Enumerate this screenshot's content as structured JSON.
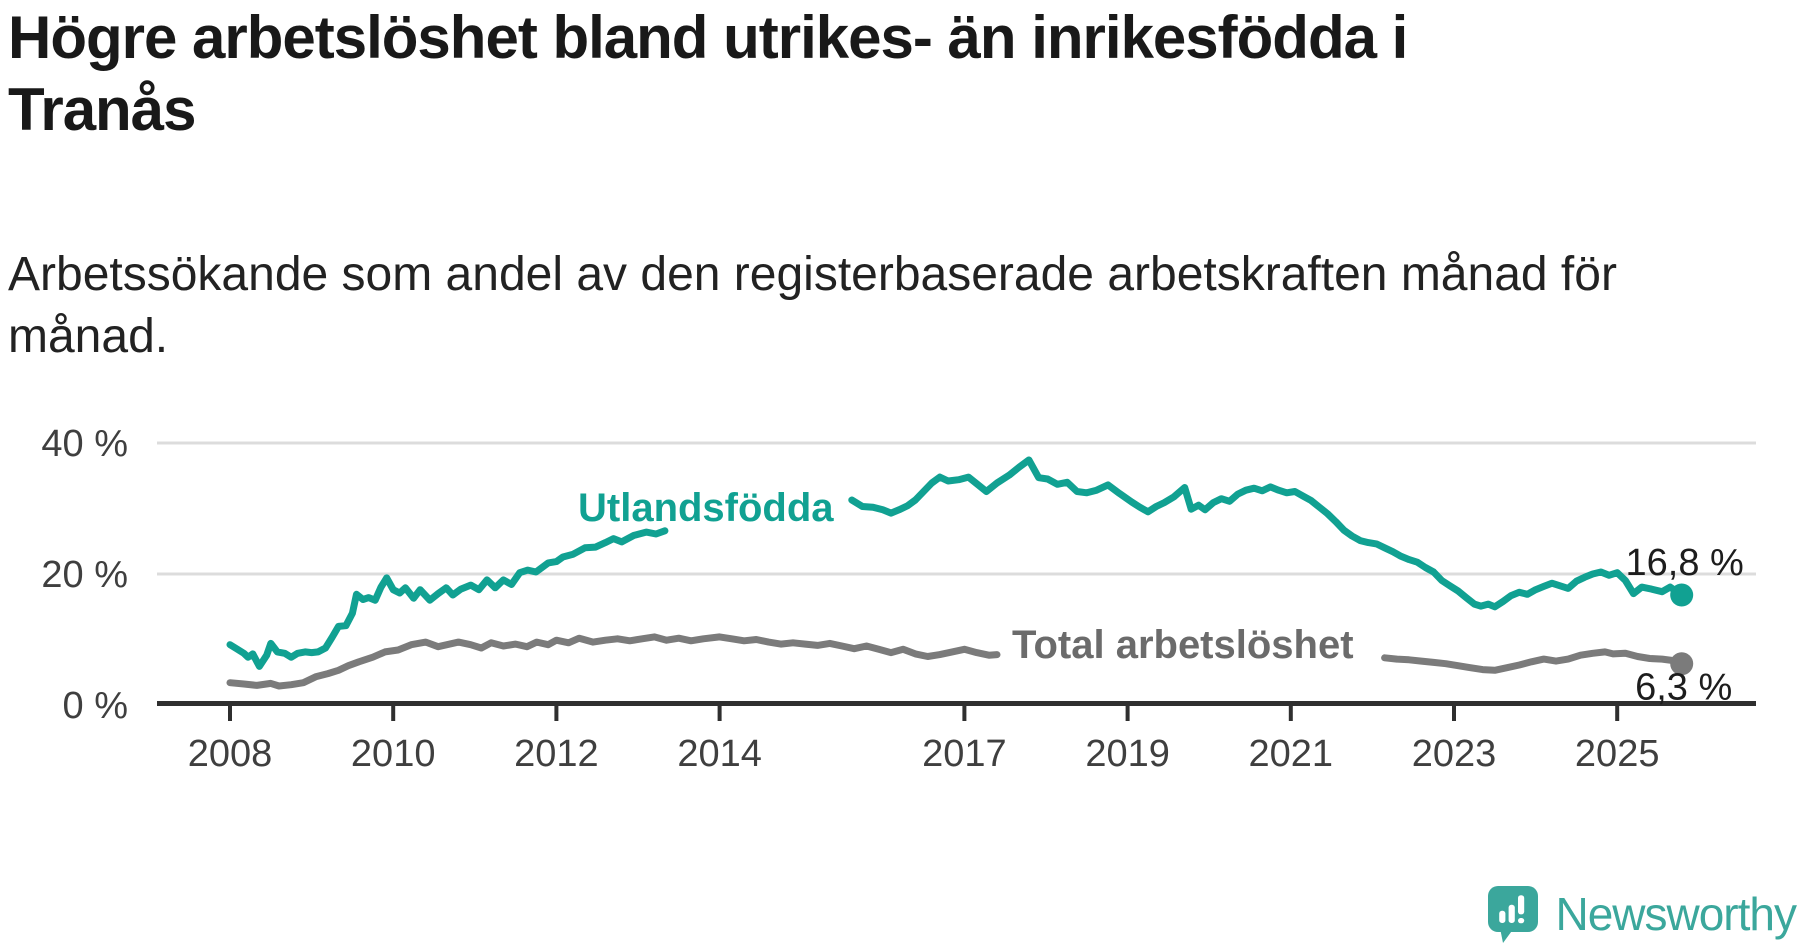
{
  "chart_data": {
    "type": "line",
    "title": "Högre arbetslöshet bland utrikes- än inrikesfödda i Tranås",
    "title_lines": [
      "Högre arbetslöshet bland utrikes- än inrikesfödda i",
      "Tranås"
    ],
    "subtitle": "Arbetssökande som andel av den registerbaserade arbetskraften månad för månad.",
    "subtitle_lines": [
      "Arbetssökande som andel av den registerbaserade arbetskraften månad för",
      "månad."
    ],
    "unit": "%",
    "grid": "horizontal-only",
    "legend": "inline-labels",
    "x_axis": {
      "ticks": [
        2008,
        2010,
        2012,
        2014,
        2017,
        2019,
        2021,
        2023,
        2025
      ],
      "tick_labels": [
        "2008",
        "2010",
        "2012",
        "2014",
        "2017",
        "2019",
        "2021",
        "2023",
        "2025"
      ],
      "range": [
        2007.1,
        2026.7
      ]
    },
    "y_axis": {
      "tick_values": [
        0,
        20,
        40
      ],
      "tick_labels": [
        "0 %",
        "20 %",
        "40 %"
      ],
      "gridline_values": [
        20,
        40
      ],
      "range": [
        0,
        42
      ]
    },
    "colors": {
      "gridline": "#DCDCDC",
      "axis": "#2F2F2F",
      "tick_label": "#3F3F3F",
      "annotation": "#1D1D1D"
    },
    "series": [
      {
        "name": "Utlandsfödda",
        "color": "#11A192",
        "label_color": "#11A192",
        "end_label": "16,8 %",
        "end_value": 16.8,
        "segments": [
          [
            [
              2008.0,
              9.2
            ],
            [
              2008.08,
              8.6
            ],
            [
              2008.17,
              7.9
            ],
            [
              2008.22,
              7.3
            ],
            [
              2008.28,
              7.8
            ],
            [
              2008.36,
              5.9
            ],
            [
              2008.45,
              7.6
            ],
            [
              2008.5,
              9.4
            ],
            [
              2008.58,
              8.1
            ],
            [
              2008.67,
              7.9
            ],
            [
              2008.75,
              7.3
            ],
            [
              2008.83,
              7.9
            ],
            [
              2008.92,
              8.1
            ],
            [
              2009.0,
              8.0
            ],
            [
              2009.08,
              8.1
            ],
            [
              2009.17,
              8.7
            ],
            [
              2009.25,
              10.3
            ],
            [
              2009.33,
              12.0
            ],
            [
              2009.42,
              12.1
            ],
            [
              2009.5,
              14.0
            ],
            [
              2009.55,
              16.9
            ],
            [
              2009.63,
              16.1
            ],
            [
              2009.7,
              16.4
            ],
            [
              2009.78,
              16.0
            ],
            [
              2009.85,
              18.0
            ],
            [
              2009.92,
              19.4
            ],
            [
              2010.0,
              17.6
            ],
            [
              2010.08,
              17.1
            ],
            [
              2010.15,
              17.9
            ],
            [
              2010.25,
              16.3
            ],
            [
              2010.33,
              17.6
            ],
            [
              2010.45,
              16.0
            ],
            [
              2010.55,
              17.0
            ],
            [
              2010.65,
              17.9
            ],
            [
              2010.73,
              16.8
            ],
            [
              2010.83,
              17.7
            ],
            [
              2010.95,
              18.3
            ],
            [
              2011.05,
              17.6
            ],
            [
              2011.15,
              19.1
            ],
            [
              2011.25,
              17.9
            ],
            [
              2011.35,
              19.1
            ],
            [
              2011.45,
              18.4
            ],
            [
              2011.55,
              20.2
            ],
            [
              2011.65,
              20.6
            ],
            [
              2011.75,
              20.3
            ],
            [
              2011.9,
              21.7
            ],
            [
              2012.0,
              21.9
            ],
            [
              2012.08,
              22.6
            ],
            [
              2012.2,
              23.0
            ],
            [
              2012.35,
              24.0
            ],
            [
              2012.48,
              24.1
            ],
            [
              2012.6,
              24.8
            ],
            [
              2012.7,
              25.4
            ],
            [
              2012.8,
              24.9
            ],
            [
              2012.95,
              25.9
            ],
            [
              2013.1,
              26.4
            ],
            [
              2013.22,
              26.1
            ],
            [
              2013.33,
              26.6
            ]
          ],
          [
            [
              2015.62,
              31.3
            ],
            [
              2015.75,
              30.3
            ],
            [
              2015.88,
              30.2
            ],
            [
              2016.0,
              29.8
            ],
            [
              2016.1,
              29.3
            ],
            [
              2016.2,
              29.8
            ],
            [
              2016.3,
              30.4
            ],
            [
              2016.4,
              31.3
            ],
            [
              2016.5,
              32.6
            ],
            [
              2016.6,
              33.9
            ],
            [
              2016.7,
              34.8
            ],
            [
              2016.8,
              34.2
            ],
            [
              2016.93,
              34.4
            ],
            [
              2017.05,
              34.8
            ],
            [
              2017.15,
              33.8
            ],
            [
              2017.27,
              32.6
            ],
            [
              2017.4,
              33.9
            ],
            [
              2017.55,
              35.1
            ],
            [
              2017.67,
              36.3
            ],
            [
              2017.79,
              37.4
            ],
            [
              2017.91,
              34.7
            ],
            [
              2018.02,
              34.5
            ],
            [
              2018.14,
              33.7
            ],
            [
              2018.26,
              34.0
            ],
            [
              2018.38,
              32.6
            ],
            [
              2018.5,
              32.4
            ],
            [
              2018.62,
              32.8
            ],
            [
              2018.76,
              33.6
            ],
            [
              2018.9,
              32.3
            ],
            [
              2019.05,
              31.0
            ],
            [
              2019.15,
              30.2
            ],
            [
              2019.25,
              29.5
            ],
            [
              2019.35,
              30.3
            ],
            [
              2019.45,
              30.9
            ],
            [
              2019.57,
              31.8
            ],
            [
              2019.7,
              33.2
            ],
            [
              2019.78,
              29.9
            ],
            [
              2019.87,
              30.5
            ],
            [
              2019.95,
              29.8
            ],
            [
              2020.05,
              30.9
            ],
            [
              2020.15,
              31.5
            ],
            [
              2020.25,
              31.1
            ],
            [
              2020.35,
              32.2
            ],
            [
              2020.45,
              32.8
            ],
            [
              2020.55,
              33.1
            ],
            [
              2020.65,
              32.7
            ],
            [
              2020.75,
              33.3
            ],
            [
              2020.85,
              32.8
            ],
            [
              2020.95,
              32.4
            ],
            [
              2021.05,
              32.6
            ],
            [
              2021.15,
              31.9
            ],
            [
              2021.25,
              31.2
            ],
            [
              2021.35,
              30.2
            ],
            [
              2021.45,
              29.2
            ],
            [
              2021.55,
              28.0
            ],
            [
              2021.65,
              26.7
            ],
            [
              2021.75,
              25.8
            ],
            [
              2021.85,
              25.1
            ],
            [
              2021.95,
              24.8
            ],
            [
              2022.05,
              24.6
            ],
            [
              2022.15,
              24.0
            ],
            [
              2022.25,
              23.4
            ],
            [
              2022.35,
              22.7
            ],
            [
              2022.45,
              22.2
            ],
            [
              2022.55,
              21.8
            ],
            [
              2022.65,
              21.0
            ],
            [
              2022.75,
              20.3
            ],
            [
              2022.85,
              19.0
            ],
            [
              2022.95,
              18.2
            ],
            [
              2023.05,
              17.4
            ],
            [
              2023.15,
              16.4
            ],
            [
              2023.25,
              15.4
            ],
            [
              2023.33,
              15.1
            ],
            [
              2023.42,
              15.4
            ],
            [
              2023.5,
              15.0
            ],
            [
              2023.6,
              15.8
            ],
            [
              2023.7,
              16.7
            ],
            [
              2023.8,
              17.2
            ],
            [
              2023.9,
              16.9
            ],
            [
              2024.0,
              17.6
            ],
            [
              2024.1,
              18.1
            ],
            [
              2024.2,
              18.6
            ],
            [
              2024.3,
              18.2
            ],
            [
              2024.4,
              17.8
            ],
            [
              2024.5,
              18.9
            ],
            [
              2024.6,
              19.5
            ],
            [
              2024.7,
              20.0
            ],
            [
              2024.8,
              20.3
            ],
            [
              2024.9,
              19.8
            ],
            [
              2025.0,
              20.2
            ],
            [
              2025.1,
              19.0
            ],
            [
              2025.2,
              17.0
            ],
            [
              2025.3,
              18.0
            ],
            [
              2025.42,
              17.7
            ],
            [
              2025.55,
              17.3
            ],
            [
              2025.65,
              18.0
            ],
            [
              2025.79,
              16.8
            ]
          ]
        ]
      },
      {
        "name": "Total arbetslöshet",
        "color": "#7B7B7B",
        "label_color": "#6B6B6B",
        "end_label": "6,3 %",
        "end_value": 6.3,
        "segments": [
          [
            [
              2008.0,
              3.4
            ],
            [
              2008.17,
              3.2
            ],
            [
              2008.33,
              3.0
            ],
            [
              2008.5,
              3.3
            ],
            [
              2008.6,
              2.9
            ],
            [
              2008.75,
              3.1
            ],
            [
              2008.9,
              3.4
            ],
            [
              2009.05,
              4.3
            ],
            [
              2009.2,
              4.8
            ],
            [
              2009.33,
              5.3
            ],
            [
              2009.45,
              6.0
            ],
            [
              2009.58,
              6.6
            ],
            [
              2009.75,
              7.3
            ],
            [
              2009.9,
              8.1
            ],
            [
              2010.06,
              8.4
            ],
            [
              2010.22,
              9.2
            ],
            [
              2010.4,
              9.6
            ],
            [
              2010.55,
              8.9
            ],
            [
              2010.8,
              9.6
            ],
            [
              2010.95,
              9.2
            ],
            [
              2011.08,
              8.7
            ],
            [
              2011.2,
              9.5
            ],
            [
              2011.35,
              9.0
            ],
            [
              2011.5,
              9.3
            ],
            [
              2011.64,
              8.9
            ],
            [
              2011.76,
              9.6
            ],
            [
              2011.9,
              9.2
            ],
            [
              2012.0,
              9.9
            ],
            [
              2012.15,
              9.5
            ],
            [
              2012.28,
              10.2
            ],
            [
              2012.45,
              9.6
            ],
            [
              2012.6,
              9.9
            ],
            [
              2012.75,
              10.1
            ],
            [
              2012.9,
              9.8
            ],
            [
              2013.05,
              10.1
            ],
            [
              2013.2,
              10.4
            ],
            [
              2013.35,
              9.9
            ],
            [
              2013.5,
              10.2
            ],
            [
              2013.65,
              9.8
            ],
            [
              2013.8,
              10.1
            ],
            [
              2014.0,
              10.4
            ],
            [
              2014.15,
              10.1
            ],
            [
              2014.3,
              9.8
            ],
            [
              2014.45,
              10.0
            ],
            [
              2014.6,
              9.6
            ],
            [
              2014.75,
              9.3
            ],
            [
              2014.9,
              9.5
            ],
            [
              2015.05,
              9.3
            ],
            [
              2015.2,
              9.1
            ],
            [
              2015.35,
              9.4
            ],
            [
              2015.5,
              9.0
            ],
            [
              2015.65,
              8.6
            ],
            [
              2015.8,
              9.0
            ],
            [
              2015.95,
              8.5
            ],
            [
              2016.1,
              8.0
            ],
            [
              2016.25,
              8.5
            ],
            [
              2016.4,
              7.8
            ],
            [
              2016.55,
              7.4
            ],
            [
              2016.7,
              7.7
            ],
            [
              2016.85,
              8.1
            ],
            [
              2017.0,
              8.5
            ],
            [
              2017.15,
              8.0
            ],
            [
              2017.3,
              7.6
            ],
            [
              2017.4,
              7.7
            ]
          ],
          [
            [
              2022.15,
              7.2
            ],
            [
              2022.3,
              7.0
            ],
            [
              2022.45,
              6.9
            ],
            [
              2022.6,
              6.7
            ],
            [
              2022.75,
              6.5
            ],
            [
              2022.9,
              6.3
            ],
            [
              2023.05,
              6.0
            ],
            [
              2023.2,
              5.7
            ],
            [
              2023.35,
              5.4
            ],
            [
              2023.5,
              5.3
            ],
            [
              2023.65,
              5.7
            ],
            [
              2023.8,
              6.1
            ],
            [
              2023.95,
              6.6
            ],
            [
              2024.1,
              7.0
            ],
            [
              2024.25,
              6.7
            ],
            [
              2024.4,
              7.0
            ],
            [
              2024.55,
              7.6
            ],
            [
              2024.7,
              7.9
            ],
            [
              2024.85,
              8.1
            ],
            [
              2024.95,
              7.8
            ],
            [
              2025.1,
              7.9
            ],
            [
              2025.25,
              7.4
            ],
            [
              2025.4,
              7.1
            ],
            [
              2025.55,
              7.0
            ],
            [
              2025.68,
              6.8
            ],
            [
              2025.79,
              6.3
            ]
          ]
        ]
      }
    ]
  },
  "logo": {
    "text": "Newsworthy",
    "color": "#3BA79C",
    "icon": "newsworthy-speech-bubble-chart-icon"
  }
}
